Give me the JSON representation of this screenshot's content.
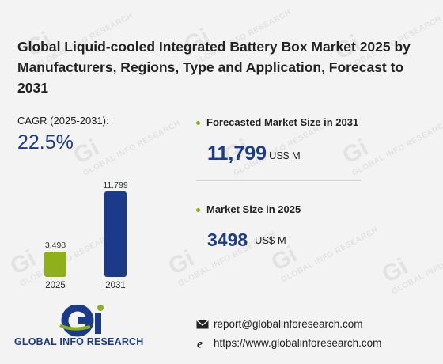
{
  "title": "Global Liquid-cooled Integrated Battery Box Market 2025 by Manufacturers, Regions, Type and Application, Forecast to 2031",
  "cagr": {
    "label": "CAGR (2025-2031):",
    "value": "22.5%"
  },
  "forecast": {
    "label": "Forecasted Market Size in 2031",
    "value": "11,799",
    "unit": "US$ M"
  },
  "current": {
    "label": "Market Size in 2025",
    "value": "3498",
    "unit": "US$ M"
  },
  "chart_data": {
    "type": "bar",
    "categories": [
      "2025",
      "2031"
    ],
    "values": [
      3498,
      11799
    ],
    "value_labels": [
      "3,498",
      "11,799"
    ],
    "colors": [
      "#8fb01a",
      "#1c3a8a"
    ],
    "title": "",
    "xlabel": "",
    "ylabel": ""
  },
  "brand": {
    "name": "GLOBAL INFO RESEARCH",
    "watermark_text": "GLOBAL INFO RESEARCH",
    "watermark_mark": "Gi",
    "primary": "#1c3a8a",
    "accent": "#8fb01a"
  },
  "contact": {
    "email": "report@globalinforesearch.com",
    "website": "https://www.globalinforesearch.com",
    "email_icon": "envelope-icon",
    "web_icon": "globe-e-icon"
  }
}
